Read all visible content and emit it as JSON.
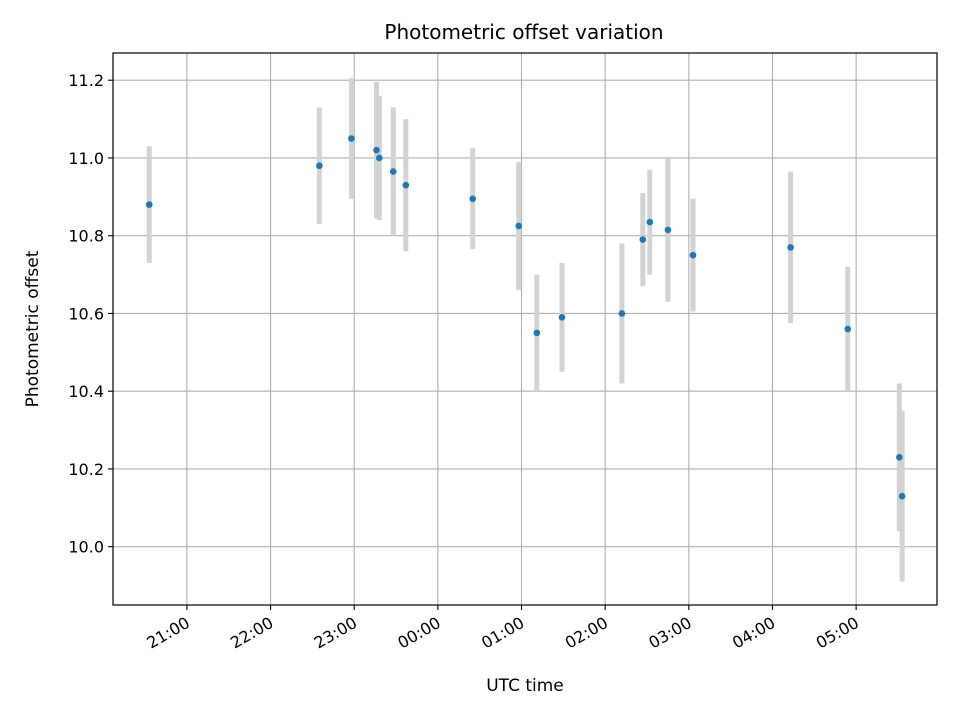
{
  "chart_data": {
    "type": "scatter",
    "title": "Photometric offset variation",
    "xlabel": "UTC time",
    "ylabel": "Photometric offset",
    "xlim": [
      "20:07",
      "05:58"
    ],
    "ylim": [
      9.85,
      11.27
    ],
    "grid": true,
    "x_tick_labels": [
      "21:00",
      "22:00",
      "23:00",
      "00:00",
      "01:00",
      "02:00",
      "03:00",
      "04:00",
      "05:00"
    ],
    "y_tick_labels": [
      "10.0",
      "10.2",
      "10.4",
      "10.6",
      "10.8",
      "11.0",
      "11.2"
    ],
    "y_ticks": [
      10.0,
      10.2,
      10.4,
      10.6,
      10.8,
      11.0,
      11.2
    ],
    "colors": {
      "marker": "#1f77b4",
      "errorbar": "#d3d3d3",
      "grid": "#b0b0b0"
    },
    "series": [
      {
        "points": [
          {
            "x": "20:33",
            "y": 10.88,
            "yerr": 0.15
          },
          {
            "x": "22:35",
            "y": 10.98,
            "yerr": 0.15
          },
          {
            "x": "22:58",
            "y": 11.05,
            "yerr": 0.155
          },
          {
            "x": "23:16",
            "y": 11.02,
            "yerr": 0.175
          },
          {
            "x": "23:18",
            "y": 11.0,
            "yerr": 0.16
          },
          {
            "x": "23:28",
            "y": 10.965,
            "yerr": 0.165
          },
          {
            "x": "23:37",
            "y": 10.93,
            "yerr": 0.17
          },
          {
            "x": "00:25",
            "y": 10.895,
            "yerr": 0.13
          },
          {
            "x": "00:58",
            "y": 10.825,
            "yerr": 0.165
          },
          {
            "x": "01:11",
            "y": 10.55,
            "yerr": 0.15
          },
          {
            "x": "01:29",
            "y": 10.59,
            "yerr": 0.14
          },
          {
            "x": "02:12",
            "y": 10.6,
            "yerr": 0.18
          },
          {
            "x": "02:27",
            "y": 10.79,
            "yerr": 0.12
          },
          {
            "x": "02:32",
            "y": 10.835,
            "yerr": 0.135
          },
          {
            "x": "02:45",
            "y": 10.815,
            "yerr": 0.185
          },
          {
            "x": "03:03",
            "y": 10.75,
            "yerr": 0.145
          },
          {
            "x": "04:13",
            "y": 10.77,
            "yerr": 0.195
          },
          {
            "x": "04:54",
            "y": 10.56,
            "yerr": 0.16
          },
          {
            "x": "05:31",
            "y": 10.23,
            "yerr": 0.19
          },
          {
            "x": "05:33",
            "y": 10.13,
            "yerr": 0.22
          }
        ]
      }
    ]
  }
}
